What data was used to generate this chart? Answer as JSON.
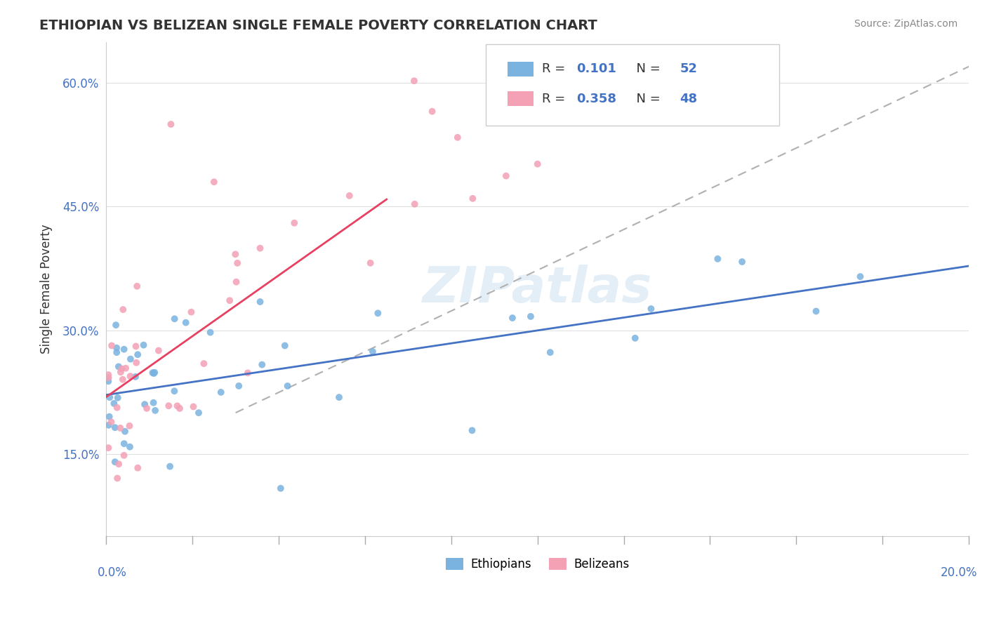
{
  "title": "ETHIOPIAN VS BELIZEAN SINGLE FEMALE POVERTY CORRELATION CHART",
  "source": "Source: ZipAtlas.com",
  "ylabel": "Single Female Poverty",
  "legend_label1": "Ethiopians",
  "legend_label2": "Belizeans",
  "r1": "0.101",
  "n1": "52",
  "r2": "0.358",
  "n2": "48",
  "color_ethiopian": "#7ab3e0",
  "color_belizean": "#f4a0b5",
  "color_trendline_eth": "#4472c4",
  "color_trendline_bel": "#e84060",
  "xlim": [
    0.0,
    0.2
  ],
  "ylim": [
    0.05,
    0.65
  ],
  "yticks": [
    0.15,
    0.3,
    0.45,
    0.6
  ],
  "ytick_labels": [
    "15.0%",
    "30.0%",
    "45.0%",
    "60.0%"
  ],
  "background_color": "#ffffff",
  "grid_color": "#e0e0e0"
}
